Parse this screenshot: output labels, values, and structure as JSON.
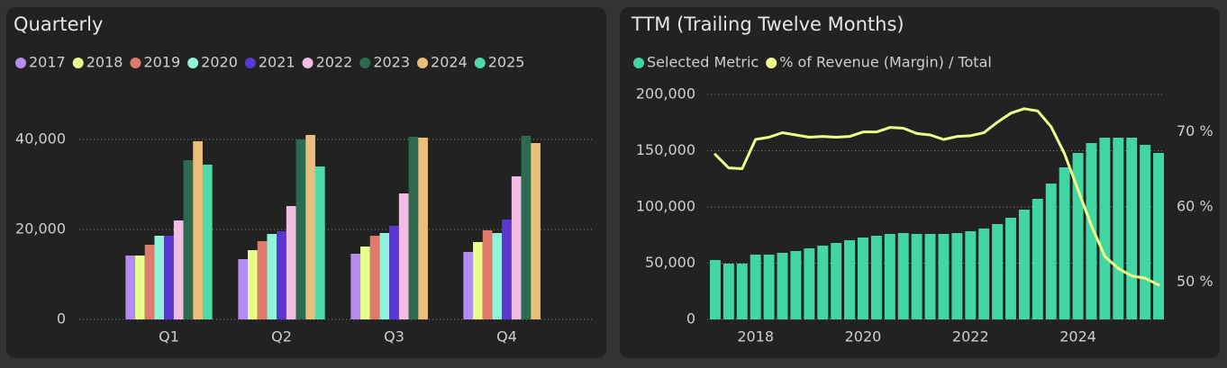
{
  "chart_data": [
    {
      "type": "bar",
      "title": "Quarterly",
      "categories": [
        "Q1",
        "Q2",
        "Q3",
        "Q4"
      ],
      "series": [
        {
          "name": "2017",
          "color": "#b48cf2",
          "values": [
            14200,
            13400,
            14600,
            15000
          ]
        },
        {
          "name": "2018",
          "color": "#e9ff8c",
          "values": [
            14200,
            15400,
            16200,
            17200
          ]
        },
        {
          "name": "2019",
          "color": "#e07b6c",
          "values": [
            16600,
            17400,
            18600,
            19800
          ]
        },
        {
          "name": "2020",
          "color": "#8ff2da",
          "values": [
            18600,
            19000,
            19200,
            19200
          ]
        },
        {
          "name": "2021",
          "color": "#5a36d2",
          "values": [
            18600,
            19600,
            20800,
            22200
          ]
        },
        {
          "name": "2022",
          "color": "#f3bde2",
          "values": [
            22000,
            25200,
            28000,
            31800
          ]
        },
        {
          "name": "2023",
          "color": "#2d6b51",
          "values": [
            35400,
            40000,
            40600,
            40800
          ]
        },
        {
          "name": "2024",
          "color": "#e9bf7a",
          "values": [
            39600,
            41000,
            40400,
            39200
          ]
        },
        {
          "name": "2025",
          "color": "#4ddba9",
          "values": [
            34400,
            34000,
            null,
            null
          ]
        }
      ],
      "ylim": [
        0,
        50000
      ],
      "yticks": [
        0,
        {
          "value": 20000,
          "label": "20,000"
        },
        {
          "value": 40000,
          "label": "40,000"
        }
      ],
      "grid": true
    },
    {
      "type": "combo",
      "title": "TTM (Trailing Twelve Months)",
      "x": [
        2017.25,
        2017.5,
        2017.75,
        2018,
        2018.25,
        2018.5,
        2018.75,
        2019,
        2019.25,
        2019.5,
        2019.75,
        2020,
        2020.25,
        2020.5,
        2020.75,
        2021,
        2021.25,
        2021.5,
        2021.75,
        2022,
        2022.25,
        2022.5,
        2022.75,
        2023,
        2023.25,
        2023.5,
        2023.75,
        2024,
        2024.25,
        2024.5,
        2024.75,
        2025,
        2025.25,
        2025.5
      ],
      "series": [
        {
          "name": "Selected Metric",
          "color": "#42d6a2",
          "type": "bar",
          "values": [
            52800,
            49600,
            49600,
            57600,
            57600,
            59200,
            60800,
            63200,
            65600,
            68000,
            70400,
            72800,
            74400,
            76000,
            76800,
            76000,
            76000,
            76000,
            76800,
            78400,
            80800,
            84800,
            90400,
            97600,
            107200,
            120800,
            135200,
            148000,
            156800,
            161600,
            161600,
            161600,
            155200,
            148000
          ]
        },
        {
          "name": "% of Revenue (Margin) / Total",
          "color": "#eeff8a",
          "type": "line",
          "axis": "y2",
          "values": [
            67.0,
            65.2,
            65.1,
            69.0,
            69.3,
            69.9,
            69.6,
            69.3,
            69.4,
            69.3,
            69.4,
            70.0,
            70.0,
            70.6,
            70.5,
            69.8,
            69.6,
            69.0,
            69.4,
            69.5,
            69.9,
            71.3,
            72.5,
            73.1,
            72.8,
            70.7,
            67.1,
            62.3,
            57.5,
            53.4,
            51.8,
            50.8,
            50.5,
            49.6
          ]
        }
      ],
      "xlim": [
        2017.1,
        2025.6
      ],
      "xticks": [
        2018,
        2020,
        2022,
        2024
      ],
      "ylim": [
        0,
        200000
      ],
      "yticks": [
        0,
        {
          "value": 50000,
          "label": "50,000"
        },
        {
          "value": 100000,
          "label": "100,000"
        },
        {
          "value": 150000,
          "label": "150,000"
        },
        {
          "value": 200000,
          "label": "200,000"
        }
      ],
      "y2lim": [
        45,
        75
      ],
      "y2ticks": [
        {
          "value": 50,
          "label": "50 %"
        },
        {
          "value": 60,
          "label": "60 %"
        },
        {
          "value": 70,
          "label": "70 %"
        }
      ],
      "grid": true
    }
  ]
}
